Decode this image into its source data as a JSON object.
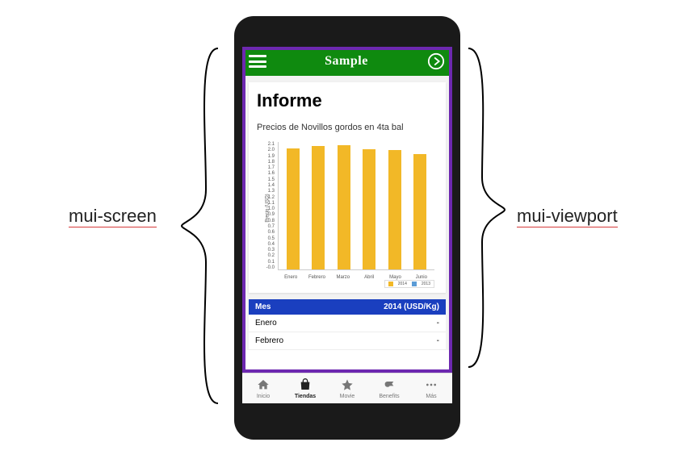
{
  "annotations": {
    "left_label": "mui-screen",
    "right_label": "mui-viewport"
  },
  "appbar": {
    "title": "Sample",
    "bg_color": "#0f8a0f",
    "icon_color": "#ffffff"
  },
  "viewport_border_color": "#6d28b0",
  "report": {
    "title": "Informe",
    "subtitle": "Precios de Novillos gordos en 4ta bal"
  },
  "chart": {
    "type": "bar",
    "ylabel": "Precio (USD)",
    "categories": [
      "Enero",
      "Febrero",
      "Marzo",
      "Abril",
      "Mayo",
      "Junio"
    ],
    "values": [
      2.0,
      2.03,
      2.05,
      1.98,
      1.97,
      1.9
    ],
    "ylim": [
      0,
      2.1
    ],
    "ytick_step": 0.1,
    "bar_color": "#f2b827",
    "grid_color": "#cccccc",
    "axis_fontsize": 6,
    "legend": [
      {
        "label": "2014",
        "color": "#f2b827"
      },
      {
        "label": "2013",
        "color": "#5b9bd5"
      }
    ]
  },
  "table": {
    "header_bg": "#1a3fbf",
    "columns": [
      "Mes",
      "2014 (USD/Kg)"
    ],
    "rows": [
      [
        "Enero",
        "-"
      ],
      [
        "Febrero",
        "-"
      ]
    ]
  },
  "tabs": [
    {
      "label": "Inicio",
      "icon": "home"
    },
    {
      "label": "Tiendas",
      "icon": "bag",
      "active": true
    },
    {
      "label": "Movie",
      "icon": "star"
    },
    {
      "label": "Benefits",
      "icon": "whistle"
    },
    {
      "label": "Más",
      "icon": "dots"
    }
  ]
}
